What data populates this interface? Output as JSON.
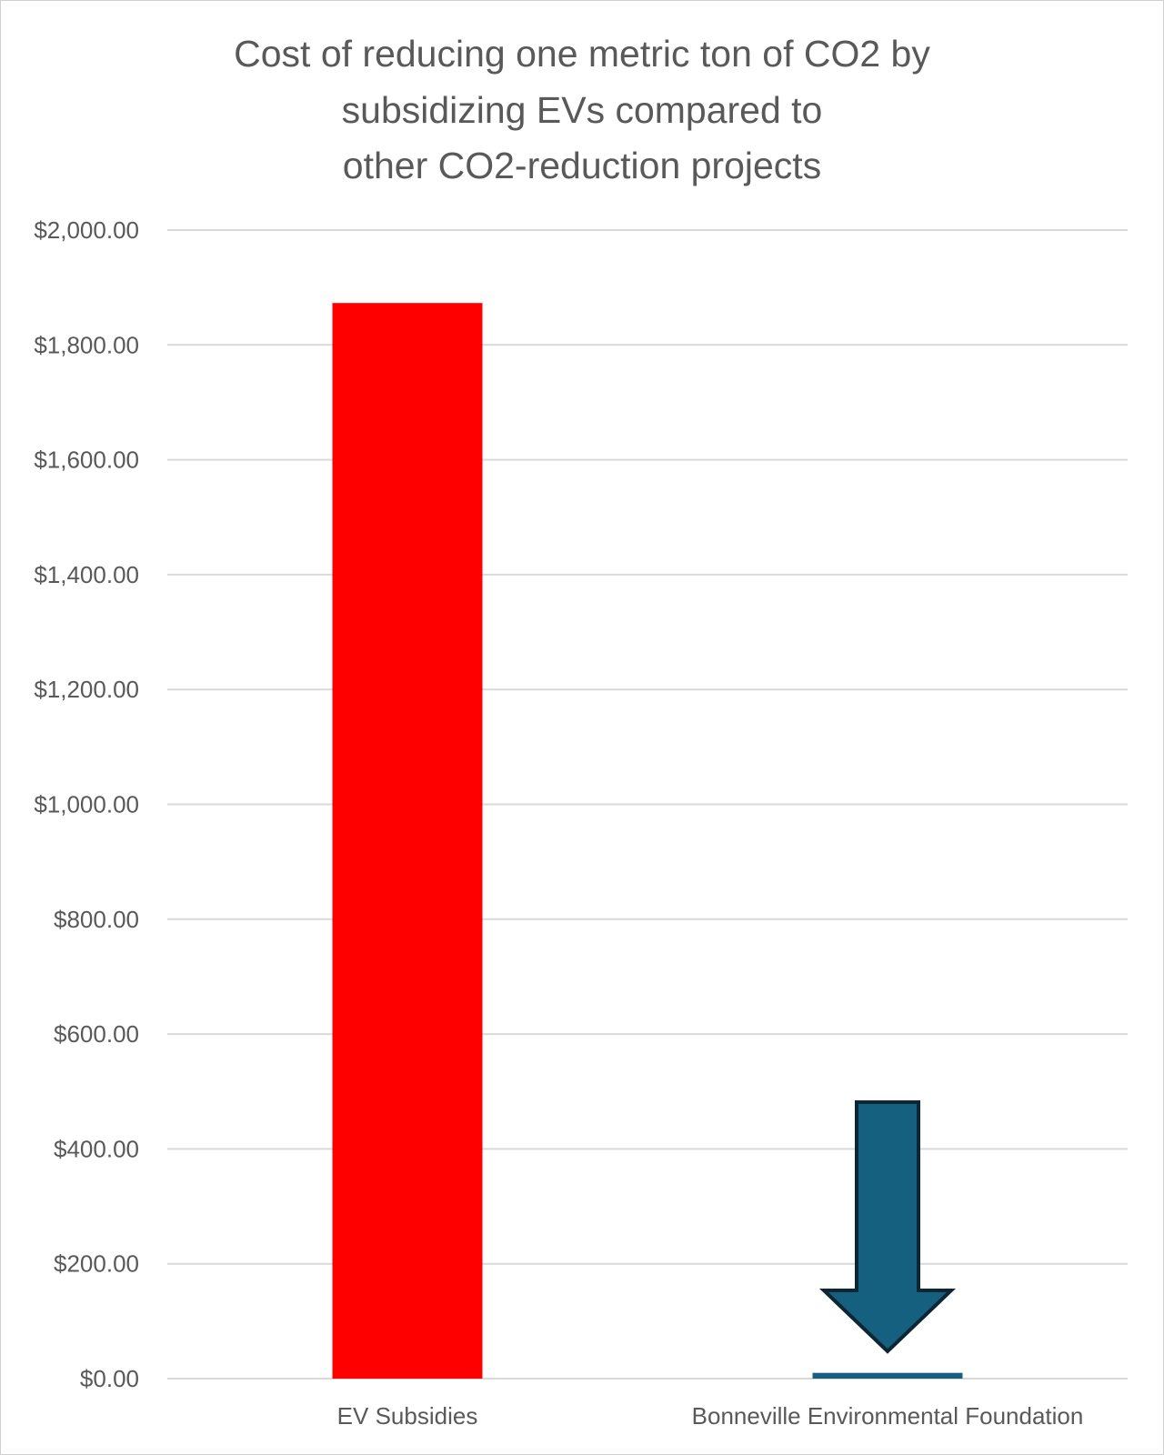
{
  "chart_data": {
    "type": "bar",
    "title_lines": [
      "Cost of reducing one metric ton of CO2 by",
      "subsidizing EVs compared to",
      "other CO2-reduction projects"
    ],
    "categories": [
      "EV Subsidies",
      "Bonneville Environmental Foundation"
    ],
    "values": [
      1873,
      10
    ],
    "colors": [
      "#ff0000",
      "#1a5f80"
    ],
    "ylim": [
      0,
      2000
    ],
    "yticks": [
      0,
      200,
      400,
      600,
      800,
      1000,
      1200,
      1400,
      1600,
      1800,
      2000
    ],
    "ytick_labels": [
      "$0.00",
      "$200.00",
      "$400.00",
      "$600.00",
      "$800.00",
      "$1,000.00",
      "$1,200.00",
      "$1,400.00",
      "$1,600.00",
      "$1,800.00",
      "$2,000.00"
    ],
    "xlabel": "",
    "ylabel": "",
    "grid": true,
    "annotation": {
      "type": "down-arrow",
      "target": "Bonneville Environmental Foundation",
      "color": "#16607f"
    }
  }
}
